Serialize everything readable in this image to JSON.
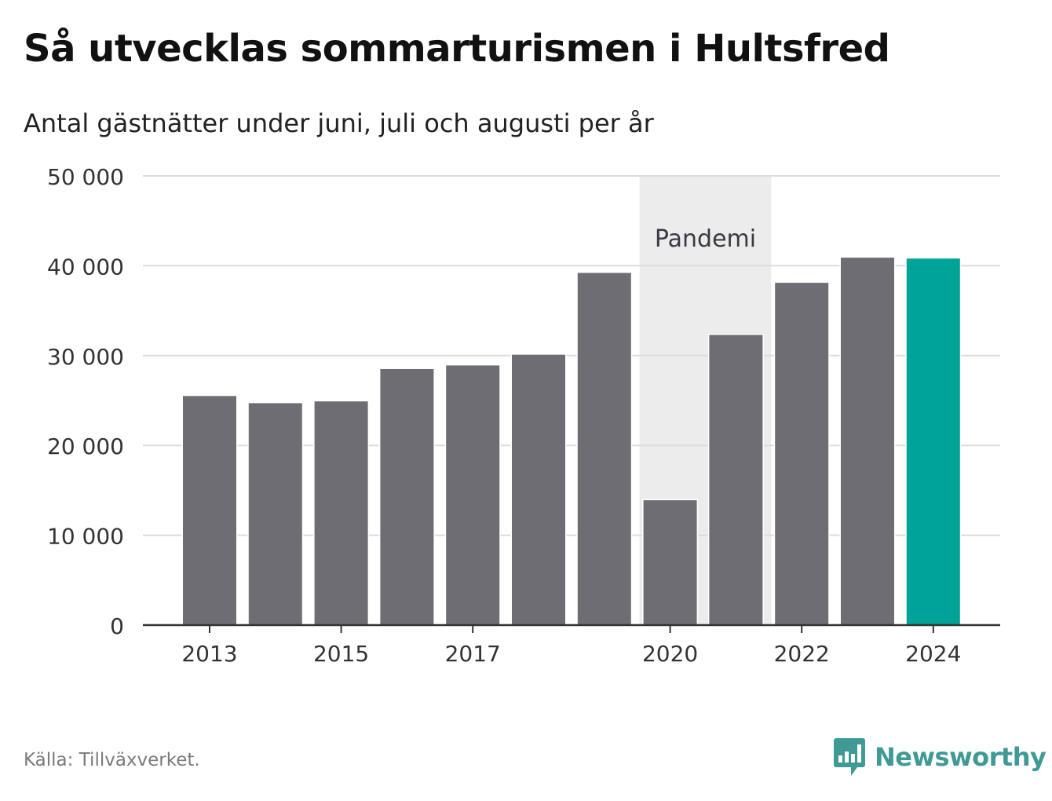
{
  "title": "Så utvecklas sommarturismen i Hultsfred",
  "subtitle": "Antal gästnätter under juni, juli och augusti per år",
  "source": "Källa: Tillväxverket.",
  "brand": {
    "name": "Newsworthy",
    "icon": "newsworthy-logo-icon",
    "color": "#3f9a96"
  },
  "colors": {
    "bar": "#6e6d73",
    "highlight": "#00a398",
    "band": "#ececec",
    "grid": "#dcdcdc",
    "axis": "#333333"
  },
  "chart_data": {
    "type": "bar",
    "categories": [
      "2013",
      "2014",
      "2015",
      "2016",
      "2017",
      "2018",
      "2019",
      "2020",
      "2021",
      "2022",
      "2023",
      "2024"
    ],
    "values": [
      25500,
      24700,
      24900,
      28500,
      28900,
      30100,
      39200,
      13900,
      32300,
      38100,
      40900,
      40800
    ],
    "highlight_index": 11,
    "xtick_labels": [
      "2013",
      "",
      "2015",
      "",
      "2017",
      "",
      "",
      "2020",
      "",
      "2022",
      "",
      "2024"
    ],
    "ylim": [
      0,
      50000
    ],
    "yticks": [
      0,
      10000,
      20000,
      30000,
      40000,
      50000
    ],
    "ytick_labels": [
      "0",
      "10 000",
      "20 000",
      "30 000",
      "40 000",
      "50 000"
    ],
    "annotation": {
      "text": "Pandemi",
      "start": "2020",
      "end": "2021"
    },
    "grid": true,
    "xlabel": "",
    "ylabel": ""
  }
}
